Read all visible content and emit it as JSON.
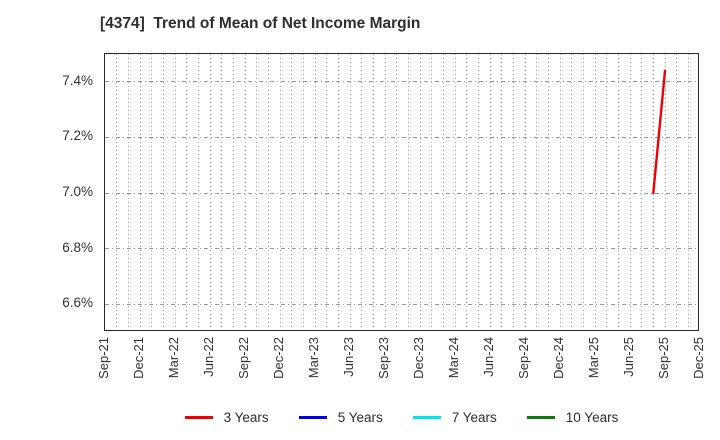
{
  "chart_data": {
    "type": "line",
    "title": "[4374]  Trend of Mean of Net Income Margin",
    "title_color": "#2e2e2e",
    "x_tick_labels": [
      "Sep-21",
      "Dec-21",
      "Mar-22",
      "Jun-22",
      "Sep-22",
      "Dec-22",
      "Mar-23",
      "Jun-23",
      "Sep-23",
      "Dec-23",
      "Mar-24",
      "Jun-24",
      "Sep-24",
      "Dec-24",
      "Mar-25",
      "Jun-25",
      "Sep-25",
      "Dec-25"
    ],
    "x_tick_months": [
      0,
      3,
      6,
      9,
      12,
      15,
      18,
      21,
      24,
      27,
      30,
      33,
      36,
      39,
      42,
      45,
      48,
      51
    ],
    "months_total": 51,
    "ylim": [
      6.5,
      7.5
    ],
    "yticks": [
      6.6,
      6.8,
      7.0,
      7.2,
      7.4
    ],
    "ytick_format": "percent-1dp",
    "grid": {
      "horizontal": "dash-dot at yticks",
      "vertical": "dotted monthly"
    },
    "legend_position": "bottom-center",
    "series": [
      {
        "name": "3 Years",
        "color": "#ee0000",
        "points": [
          {
            "x_label": "Aug-25",
            "month": 47,
            "y": 7.0
          },
          {
            "x_label": "Sep-25",
            "month": 48,
            "y": 7.44
          }
        ]
      },
      {
        "name": "5 Years",
        "color": "#0000ee",
        "points": []
      },
      {
        "name": "7 Years",
        "color": "#00e5ee",
        "points": []
      },
      {
        "name": "10 Years",
        "color": "#107a10",
        "points": []
      }
    ]
  }
}
